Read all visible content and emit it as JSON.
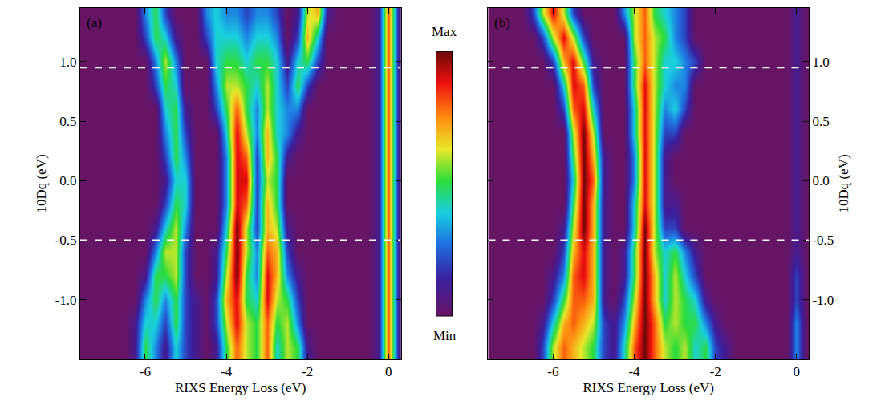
{
  "chart_data": [
    {
      "type": "heatmap",
      "title": "(a)",
      "xlabel": "RIXS Energy Loss (eV)",
      "ylabel": "10Dq (eV)",
      "x": [
        -7.0,
        -6.75,
        -6.5,
        -6.25,
        -6.0,
        -5.75,
        -5.5,
        -5.25,
        -5.0,
        -4.75,
        -4.5,
        -4.25,
        -4.0,
        -3.75,
        -3.5,
        -3.25,
        -3.0,
        -2.75,
        -2.5,
        -2.25,
        -2.0,
        -1.75,
        -1.5,
        -1.25,
        -1.0,
        -0.75,
        -0.5,
        -0.25,
        0,
        0.25
      ],
      "y": [
        -1.4,
        -1.2,
        -1.0,
        -0.8,
        -0.6,
        -0.4,
        -0.2,
        0,
        0.2,
        0.4,
        0.6,
        0.8,
        1.0,
        1.2,
        1.4
      ],
      "z": [
        [
          0,
          0,
          0,
          1,
          5,
          3,
          1,
          4,
          2,
          1,
          0,
          1,
          5,
          8,
          6,
          5,
          8,
          4,
          6,
          5,
          1,
          0,
          0,
          0,
          0,
          0,
          0,
          1,
          8,
          1
        ],
        [
          0,
          0,
          0,
          1,
          4,
          4,
          2,
          5,
          2,
          1,
          0,
          2,
          6,
          9,
          6,
          5,
          8,
          5,
          6,
          3,
          0,
          0,
          0,
          0,
          0,
          0,
          0,
          1,
          8,
          1
        ],
        [
          0,
          0,
          0,
          0,
          3,
          5,
          3,
          5,
          2,
          1,
          0,
          2,
          7,
          9,
          5,
          4,
          9,
          6,
          5,
          2,
          0,
          0,
          0,
          0,
          0,
          0,
          0,
          1,
          8,
          1
        ],
        [
          0,
          0,
          0,
          0,
          1,
          5,
          5,
          6,
          2,
          0,
          0,
          1,
          6,
          10,
          5,
          3,
          9,
          7,
          3,
          1,
          0,
          0,
          0,
          0,
          0,
          0,
          0,
          1,
          8,
          1
        ],
        [
          0,
          0,
          0,
          0,
          0,
          3,
          6,
          6,
          2,
          0,
          0,
          1,
          5,
          10,
          6,
          3,
          8,
          7,
          2,
          0,
          0,
          0,
          0,
          0,
          0,
          0,
          0,
          1,
          8,
          1
        ],
        [
          0,
          0,
          0,
          0,
          0,
          1,
          4,
          6,
          3,
          0,
          0,
          0,
          4,
          10,
          6,
          2,
          7,
          6,
          1,
          0,
          0,
          0,
          0,
          0,
          0,
          0,
          0,
          1,
          8,
          1
        ],
        [
          0,
          0,
          0,
          0,
          0,
          0,
          2,
          5,
          4,
          0,
          0,
          0,
          3,
          9,
          8,
          2,
          7,
          5,
          0,
          0,
          0,
          0,
          0,
          0,
          0,
          0,
          0,
          1,
          8,
          1
        ],
        [
          0,
          0,
          0,
          0,
          0,
          0,
          1,
          4,
          4,
          0,
          0,
          0,
          3,
          9,
          9,
          2,
          6,
          5,
          0,
          0,
          0,
          0,
          0,
          0,
          0,
          0,
          0,
          1,
          8,
          1
        ],
        [
          0,
          0,
          0,
          0,
          0,
          0,
          2,
          5,
          3,
          0,
          0,
          0,
          3,
          9,
          8,
          2,
          7,
          5,
          1,
          0,
          0,
          0,
          0,
          0,
          0,
          0,
          0,
          1,
          8,
          1
        ],
        [
          0,
          0,
          0,
          0,
          0,
          0,
          3,
          5,
          2,
          0,
          0,
          0,
          4,
          9,
          6,
          3,
          7,
          4,
          3,
          1,
          0,
          0,
          0,
          0,
          0,
          0,
          0,
          1,
          8,
          1
        ],
        [
          0,
          0,
          0,
          0,
          0,
          0,
          4,
          5,
          1,
          0,
          0,
          2,
          5,
          8,
          5,
          3,
          6,
          4,
          3,
          3,
          0,
          0,
          0,
          0,
          0,
          0,
          0,
          1,
          8,
          1
        ],
        [
          0,
          0,
          0,
          0,
          0,
          2,
          5,
          4,
          0,
          0,
          0,
          3,
          6,
          6,
          5,
          4,
          6,
          4,
          2,
          5,
          2,
          0,
          0,
          0,
          0,
          0,
          0,
          1,
          8,
          1
        ],
        [
          0,
          0,
          0,
          0,
          0,
          3,
          6,
          3,
          0,
          0,
          0,
          4,
          5,
          5,
          4,
          5,
          5,
          4,
          1,
          4,
          5,
          2,
          0,
          0,
          0,
          0,
          0,
          1,
          8,
          1
        ],
        [
          0,
          0,
          0,
          0,
          2,
          5,
          4,
          1,
          0,
          0,
          2,
          4,
          4,
          4,
          3,
          4,
          4,
          3,
          0,
          2,
          7,
          4,
          0,
          0,
          0,
          0,
          0,
          1,
          8,
          1
        ],
        [
          0,
          0,
          0,
          0,
          3,
          5,
          2,
          0,
          0,
          0,
          3,
          4,
          3,
          3,
          2,
          3,
          3,
          2,
          0,
          1,
          6,
          7,
          1,
          0,
          0,
          0,
          0,
          1,
          8,
          1
        ]
      ],
      "xlim": [
        -7.6,
        0.3
      ],
      "ylim": [
        -1.5,
        1.45
      ],
      "xticks": [
        -6,
        -4,
        -2,
        0
      ],
      "yticks": [
        {
          "value": -1.0,
          "label": "-1.0"
        },
        {
          "value": -0.5,
          "label": "-0.5"
        },
        {
          "value": 0,
          "label": "0.0"
        },
        {
          "value": 0.5,
          "label": "0.5"
        },
        {
          "value": 1.0,
          "label": "1.0"
        }
      ],
      "hlines": [
        0.95,
        -0.5
      ],
      "colorbar": {
        "zlim": [
          0,
          10
        ],
        "ticks": [
          {
            "value": 10,
            "label": "Max"
          },
          {
            "value": 0,
            "label": "Min"
          }
        ]
      }
    },
    {
      "type": "heatmap",
      "title": "(b)",
      "xlabel": "RIXS Energy Loss (eV)",
      "ylabel": "10Dq (eV)",
      "x": [
        -7.0,
        -6.75,
        -6.5,
        -6.25,
        -6.0,
        -5.75,
        -5.5,
        -5.25,
        -5.0,
        -4.75,
        -4.5,
        -4.25,
        -4.0,
        -3.75,
        -3.5,
        -3.25,
        -3.0,
        -2.75,
        -2.5,
        -2.25,
        -2.0,
        -1.75,
        -1.5,
        -1.25,
        -1.0,
        -0.75,
        -0.5,
        -0.25,
        0,
        0.25
      ],
      "y": [
        -1.4,
        -1.2,
        -1.0,
        -0.8,
        -0.6,
        -0.4,
        -0.2,
        0,
        0.2,
        0.4,
        0.6,
        0.8,
        1.0,
        1.2,
        1.4
      ],
      "z": [
        [
          0,
          0,
          0,
          2,
          6,
          8,
          7,
          6,
          5,
          2,
          1,
          4,
          8,
          10,
          8,
          6,
          5,
          6,
          4,
          5,
          2,
          1,
          0,
          0,
          0,
          0,
          0,
          0,
          3,
          0
        ],
        [
          0,
          0,
          0,
          1,
          4,
          7,
          8,
          7,
          6,
          2,
          1,
          3,
          7,
          10,
          8,
          5,
          6,
          5,
          5,
          3,
          1,
          0,
          0,
          0,
          0,
          0,
          0,
          0,
          3,
          0
        ],
        [
          0,
          0,
          0,
          0,
          2,
          5,
          8,
          8,
          7,
          1,
          0,
          2,
          6,
          10,
          7,
          4,
          6,
          5,
          4,
          1,
          0,
          0,
          0,
          0,
          0,
          0,
          0,
          0,
          2,
          0
        ],
        [
          0,
          0,
          0,
          0,
          1,
          3,
          8,
          9,
          7,
          1,
          0,
          1,
          5,
          10,
          7,
          4,
          6,
          4,
          2,
          0,
          0,
          0,
          0,
          0,
          0,
          0,
          0,
          0,
          2,
          0
        ],
        [
          0,
          0,
          0,
          0,
          0,
          2,
          7,
          9,
          7,
          1,
          0,
          1,
          5,
          10,
          6,
          4,
          5,
          3,
          1,
          0,
          0,
          0,
          0,
          0,
          0,
          0,
          0,
          0,
          1,
          0
        ],
        [
          0,
          0,
          0,
          0,
          0,
          1,
          6,
          10,
          7,
          1,
          0,
          0,
          4,
          10,
          6,
          2,
          2,
          0,
          0,
          0,
          0,
          0,
          0,
          0,
          0,
          0,
          0,
          0,
          1,
          0
        ],
        [
          0,
          0,
          0,
          0,
          0,
          0,
          5,
          10,
          7,
          1,
          0,
          0,
          4,
          9,
          6,
          1,
          1,
          0,
          0,
          0,
          0,
          0,
          0,
          0,
          0,
          0,
          0,
          0,
          1,
          0
        ],
        [
          0,
          0,
          0,
          0,
          0,
          0,
          4,
          10,
          8,
          1,
          0,
          0,
          3,
          9,
          6,
          1,
          0,
          0,
          0,
          0,
          0,
          0,
          0,
          0,
          0,
          0,
          0,
          0,
          1,
          0
        ],
        [
          0,
          0,
          0,
          0,
          0,
          0,
          5,
          10,
          7,
          1,
          0,
          0,
          3,
          9,
          6,
          1,
          0,
          0,
          0,
          0,
          0,
          0,
          0,
          0,
          0,
          0,
          0,
          0,
          1,
          0
        ],
        [
          0,
          0,
          0,
          0,
          0,
          0,
          6,
          10,
          6,
          0,
          0,
          0,
          4,
          9,
          6,
          2,
          2,
          0,
          0,
          0,
          0,
          0,
          0,
          0,
          0,
          0,
          0,
          0,
          1,
          0
        ],
        [
          0,
          0,
          0,
          0,
          0,
          2,
          8,
          9,
          4,
          0,
          0,
          0,
          4,
          9,
          6,
          3,
          4,
          2,
          0,
          0,
          0,
          0,
          0,
          0,
          0,
          0,
          0,
          0,
          1,
          0
        ],
        [
          0,
          0,
          0,
          0,
          0,
          4,
          9,
          8,
          2,
          0,
          0,
          0,
          5,
          9,
          6,
          4,
          3,
          3,
          0,
          0,
          0,
          0,
          0,
          0,
          0,
          0,
          0,
          0,
          1,
          0
        ],
        [
          0,
          0,
          0,
          0,
          2,
          7,
          9,
          5,
          1,
          0,
          0,
          0,
          5,
          8,
          6,
          4,
          4,
          3,
          2,
          0,
          0,
          0,
          0,
          0,
          0,
          0,
          0,
          0,
          1,
          0
        ],
        [
          0,
          0,
          0,
          2,
          6,
          9,
          6,
          2,
          0,
          0,
          0,
          0,
          6,
          8,
          6,
          5,
          3,
          2,
          0,
          0,
          0,
          0,
          0,
          0,
          0,
          0,
          0,
          0,
          1,
          0
        ],
        [
          0,
          0,
          2,
          6,
          9,
          6,
          2,
          0,
          0,
          0,
          0,
          3,
          6,
          8,
          5,
          4,
          3,
          2,
          0,
          0,
          0,
          0,
          0,
          0,
          0,
          0,
          0,
          0,
          1,
          0
        ]
      ],
      "xlim": [
        -7.6,
        0.3
      ],
      "ylim": [
        -1.5,
        1.45
      ],
      "xticks": [
        -6,
        -4,
        -2,
        0
      ],
      "yticks": [
        {
          "value": -1.0,
          "label": "-1.0"
        },
        {
          "value": -0.5,
          "label": "-0.5"
        },
        {
          "value": 0,
          "label": "0.0"
        },
        {
          "value": 0.5,
          "label": "0.5"
        },
        {
          "value": 1.0,
          "label": "1.0"
        }
      ],
      "hlines": [
        0.95,
        -0.5
      ]
    }
  ]
}
